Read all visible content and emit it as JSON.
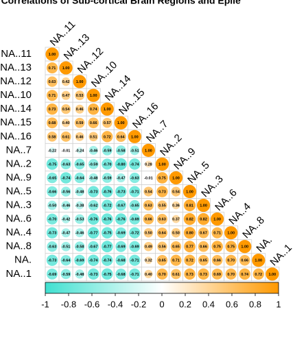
{
  "chart_data": {
    "type": "corrplot",
    "title": "ic Correlations of Sub-cortical Brain Regions and Epile",
    "categories": [
      "NA..11",
      "NA..13",
      "NA..12",
      "NA..10",
      "NA..14",
      "NA..15",
      "NA..16",
      "NA..7",
      "NA..2",
      "NA..9",
      "NA..5",
      "NA..3",
      "NA..6",
      "NA..4",
      "NA..8",
      "NA.",
      "NA..1"
    ],
    "values": [
      [
        1
      ],
      [
        0.71,
        1
      ],
      [
        0.63,
        0.42,
        1
      ],
      [
        0.71,
        0.47,
        0.53,
        1
      ],
      [
        0.73,
        0.54,
        0.46,
        0.74,
        1
      ],
      [
        0.68,
        0.4,
        0.59,
        0.66,
        0.57,
        1
      ],
      [
        0.58,
        0.61,
        0.46,
        0.51,
        0.72,
        0.64,
        1
      ],
      [
        -0.22,
        -0.01,
        -0.24,
        -0.46,
        -0.59,
        -0.58,
        -0.51,
        1
      ],
      [
        -0.75,
        -0.63,
        -0.65,
        -0.59,
        -0.7,
        -0.8,
        -0.74,
        0.28,
        1
      ],
      [
        -0.65,
        -0.74,
        -0.64,
        -0.48,
        -0.59,
        -0.47,
        -0.63,
        -0.01,
        0.75,
        1
      ],
      [
        -0.66,
        -0.56,
        -0.48,
        -0.73,
        -0.76,
        -0.73,
        -0.71,
        0.54,
        0.73,
        0.54,
        1
      ],
      [
        -0.5,
        -0.46,
        -0.38,
        -0.62,
        -0.72,
        -0.67,
        -0.65,
        0.63,
        0.55,
        0.36,
        0.81,
        1
      ],
      [
        -0.7,
        -0.42,
        -0.53,
        -0.76,
        -0.76,
        -0.76,
        -0.69,
        0.66,
        0.63,
        0.37,
        0.82,
        0.82,
        1
      ],
      [
        -0.73,
        -0.47,
        -0.46,
        -0.77,
        -0.75,
        -0.69,
        -0.72,
        0.5,
        0.64,
        0.5,
        0.8,
        0.67,
        0.71,
        1
      ],
      [
        -0.63,
        -0.51,
        -0.58,
        -0.67,
        -0.77,
        -0.69,
        -0.69,
        0.49,
        0.56,
        0.65,
        0.77,
        0.66,
        0.75,
        0.75,
        1
      ],
      [
        -0.73,
        -0.64,
        -0.69,
        -0.74,
        -0.74,
        -0.68,
        -0.71,
        0.32,
        0.65,
        0.71,
        0.72,
        0.65,
        0.66,
        0.7,
        0.66,
        1
      ],
      [
        -0.69,
        -0.59,
        -0.48,
        -0.73,
        -0.75,
        -0.68,
        -0.71,
        0.4,
        0.7,
        0.61,
        0.73,
        0.73,
        0.69,
        0.7,
        0.74,
        0.72,
        1
      ]
    ],
    "value_labels": [
      [
        "1.00"
      ],
      [
        "0.71",
        "1.00"
      ],
      [
        "0.63",
        "0.42",
        "1.00"
      ],
      [
        "0.71",
        "0.47",
        "0.53",
        "1.00"
      ],
      [
        "0.73",
        "0.54",
        "0.46",
        "0.74",
        "1.00"
      ],
      [
        "0.68",
        "0.40",
        "0.59",
        "0.66",
        "0.57",
        "1.00"
      ],
      [
        "0.58",
        "0.61",
        "0.46",
        "0.51",
        "0.72",
        "0.64",
        "1.00"
      ],
      [
        "-0.22",
        "-0.01",
        "-0.24",
        "-0.46",
        "-0.59",
        "-0.58",
        "-0.51",
        "1.00"
      ],
      [
        "-0.75",
        "-0.63",
        "-0.65",
        "-0.59",
        "-0.70",
        "-0.80",
        "-0.74",
        "0.28",
        "1.00"
      ],
      [
        "-0.65",
        "-0.74",
        "-0.64",
        "-0.48",
        "-0.59",
        "-0.47",
        "-0.63",
        "-0.01",
        "0.75",
        "1.00"
      ],
      [
        "-0.66",
        "-0.56",
        "-0.48",
        "-0.73",
        "-0.76",
        "-0.73",
        "-0.71",
        "0.54",
        "0.73",
        "0.54",
        "1.00"
      ],
      [
        "-0.50",
        "-0.46",
        "-0.38",
        "-0.62",
        "-0.72",
        "-0.67",
        "-0.65",
        "0.63",
        "0.55",
        "0.36",
        "0.81",
        "1.00"
      ],
      [
        "-0.70",
        "-0.42",
        "-0.53",
        "-0.76",
        "-0.76",
        "-0.76",
        "-0.69",
        "0.66",
        "0.63",
        "0.37",
        "0.82",
        "0.82",
        "1.00"
      ],
      [
        "-0.73",
        "-0.47",
        "-0.46",
        "-0.77",
        "-0.75",
        "-0.69",
        "-0.72",
        "0.50",
        "0.64",
        "0.50",
        "0.80",
        "0.67",
        "0.71",
        "1.00"
      ],
      [
        "-0.63",
        "-0.51",
        "-0.58",
        "-0.67",
        "-0.77",
        "-0.69",
        "-0.69",
        "0.49",
        "0.56",
        "0.65",
        "0.77",
        "0.66",
        "0.75",
        "0.75",
        "1.00"
      ],
      [
        "-0.73",
        "-0.64",
        "-0.69",
        "-0.74",
        "-0.74",
        "-0.68",
        "-0.71",
        "0.32",
        "0.65",
        "0.71",
        "0.72",
        "0.65",
        "0.66",
        "0.70",
        "0.66",
        "1.00"
      ],
      [
        "-0.69",
        "-0.59",
        "-0.48",
        "-0.73",
        "-0.75",
        "-0.68",
        "-0.71",
        "0.40",
        "0.70",
        "0.61",
        "0.73",
        "0.73",
        "0.69",
        "0.70",
        "0.74",
        "0.72",
        "1.00"
      ]
    ],
    "colors": {
      "low": "#40e0d0",
      "mid": "#ffffff",
      "high": "#ff9900"
    },
    "color_lim": [
      -1,
      1
    ],
    "color_ticks": [
      -1,
      -0.8,
      -0.6,
      -0.4,
      -0.2,
      0,
      0.2,
      0.4,
      0.6,
      0.8,
      1
    ]
  }
}
